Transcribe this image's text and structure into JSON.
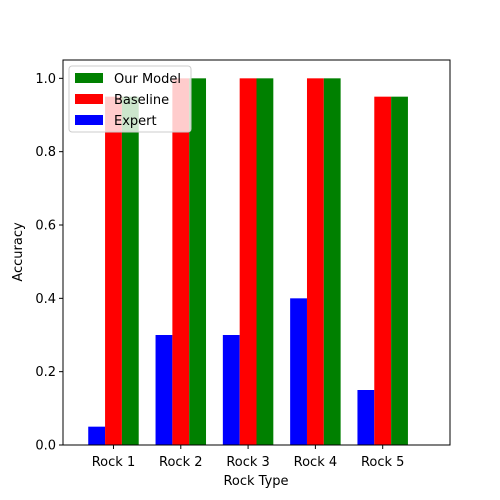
{
  "chart_data": {
    "type": "bar",
    "categories": [
      "Rock 1",
      "Rock 2",
      "Rock 3",
      "Rock 4",
      "Rock 5"
    ],
    "series": [
      {
        "name": "Expert",
        "values": [
          0.05,
          0.3,
          0.3,
          0.4,
          0.15
        ],
        "color": "#0000ff"
      },
      {
        "name": "Baseline",
        "values": [
          0.95,
          1.0,
          1.0,
          1.0,
          0.95
        ],
        "color": "#ff0000"
      },
      {
        "name": "Our Model",
        "values": [
          0.95,
          1.0,
          1.0,
          1.0,
          0.95
        ],
        "color": "#008000"
      }
    ],
    "legend_order": [
      "Our Model",
      "Baseline",
      "Expert"
    ],
    "xlabel": "Rock Type",
    "ylabel": "Accuracy",
    "ylim": [
      0,
      1.05
    ],
    "yticks": [
      "0.0",
      "0.2",
      "0.4",
      "0.6",
      "0.8",
      "1.0"
    ],
    "grid": false,
    "legend_position": "upper-left"
  }
}
